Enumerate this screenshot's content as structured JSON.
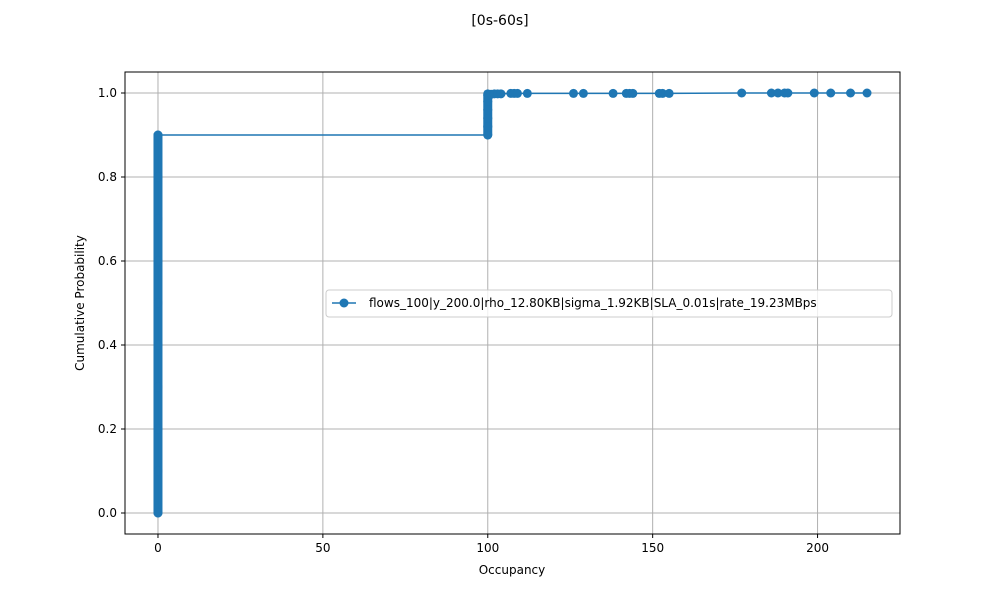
{
  "chart_data": {
    "type": "line",
    "title": "[0s-60s]",
    "xlabel": "Occupancy",
    "ylabel": "Cumulative Probability",
    "xlim": [
      -10,
      225
    ],
    "ylim": [
      -0.05,
      1.05
    ],
    "xticks": [
      0,
      50,
      100,
      150,
      200
    ],
    "yticks": [
      0.0,
      0.2,
      0.4,
      0.6,
      0.8,
      1.0
    ],
    "xtick_labels": [
      "0",
      "50",
      "100",
      "150",
      "200"
    ],
    "ytick_labels": [
      "0.0",
      "0.2",
      "0.4",
      "0.6",
      "0.8",
      "1.0"
    ],
    "grid": true,
    "legend_position": "center-right",
    "series_color": "#1f77b4",
    "series": [
      {
        "name": "flows_100|y_200.0|rho_12.80KB|sigma_1.92KB|SLA_0.01s|rate_19.23MBps",
        "points": [
          [
            0,
            0.0
          ],
          [
            0,
            0.1
          ],
          [
            0,
            0.2
          ],
          [
            0,
            0.3
          ],
          [
            0,
            0.4
          ],
          [
            0,
            0.5
          ],
          [
            0,
            0.6
          ],
          [
            0,
            0.7
          ],
          [
            0,
            0.8
          ],
          [
            0,
            0.9
          ],
          [
            100,
            0.9
          ],
          [
            100,
            0.92
          ],
          [
            100,
            0.94
          ],
          [
            100,
            0.96
          ],
          [
            100,
            0.98
          ],
          [
            100,
            0.995
          ],
          [
            101,
            0.997
          ],
          [
            102,
            0.998
          ],
          [
            103,
            0.998
          ],
          [
            104,
            0.998
          ],
          [
            107,
            0.999
          ],
          [
            108,
            0.999
          ],
          [
            109,
            0.999
          ],
          [
            112,
            0.999
          ],
          [
            126,
            0.999
          ],
          [
            129,
            0.999
          ],
          [
            138,
            0.999
          ],
          [
            142,
            0.999
          ],
          [
            143,
            0.999
          ],
          [
            144,
            0.999
          ],
          [
            152,
            0.999
          ],
          [
            153,
            0.999
          ],
          [
            155,
            0.999
          ],
          [
            177,
            1.0
          ],
          [
            186,
            1.0
          ],
          [
            188,
            1.0
          ],
          [
            190,
            1.0
          ],
          [
            191,
            1.0
          ],
          [
            199,
            1.0
          ],
          [
            204,
            1.0
          ],
          [
            210,
            1.0
          ],
          [
            215,
            1.0
          ]
        ]
      }
    ]
  }
}
